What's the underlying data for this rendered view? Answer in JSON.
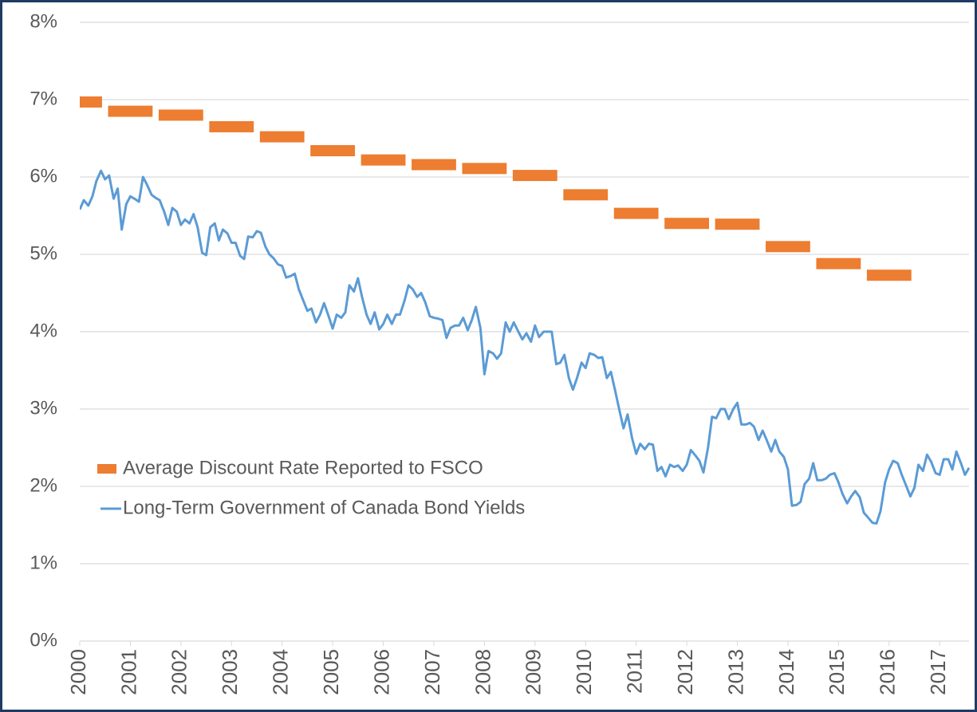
{
  "chart_data": {
    "type": "line",
    "legend": "left",
    "grid": true,
    "xlim": [
      2000,
      2017.58
    ],
    "xticks": [
      2000,
      2001,
      2002,
      2003,
      2004,
      2005,
      2006,
      2007,
      2008,
      2009,
      2010,
      2011,
      2012,
      2013,
      2014,
      2015,
      2016,
      2017
    ],
    "ylim": [
      0,
      8
    ],
    "yticks": [
      {
        "value": 0,
        "label": "0%"
      },
      {
        "value": 1,
        "label": "1%"
      },
      {
        "value": 2,
        "label": "2%"
      },
      {
        "value": 3,
        "label": "3%"
      },
      {
        "value": 4,
        "label": "4%"
      },
      {
        "value": 5,
        "label": "5%"
      },
      {
        "value": 6,
        "label": "6%"
      },
      {
        "value": 7,
        "label": "7%"
      },
      {
        "value": 8,
        "label": "8%"
      }
    ],
    "series": [
      {
        "name": "Average Discount Rate Reported to FSCO",
        "type": "dash",
        "color": "#ed7d31",
        "x": [
          2000,
          2001,
          2002,
          2003,
          2004,
          2005,
          2006,
          2007,
          2008,
          2009,
          2010,
          2011,
          2012,
          2013,
          2014,
          2015,
          2016
        ],
        "values": [
          6.97,
          6.85,
          6.8,
          6.65,
          6.52,
          6.34,
          6.22,
          6.16,
          6.11,
          6.02,
          5.77,
          5.53,
          5.4,
          5.39,
          5.1,
          4.88,
          4.73
        ]
      },
      {
        "name": "Long-Term Government of Canada Bond Yields",
        "type": "line",
        "color": "#5b9bd5",
        "x": [
          2000.0,
          2000.08,
          2000.17,
          2000.25,
          2000.33,
          2000.42,
          2000.5,
          2000.58,
          2000.67,
          2000.75,
          2000.83,
          2000.92,
          2001.0,
          2001.08,
          2001.17,
          2001.25,
          2001.33,
          2001.42,
          2001.5,
          2001.58,
          2001.67,
          2001.75,
          2001.83,
          2001.92,
          2002.0,
          2002.08,
          2002.17,
          2002.25,
          2002.33,
          2002.42,
          2002.5,
          2002.58,
          2002.67,
          2002.75,
          2002.83,
          2002.92,
          2003.0,
          2003.08,
          2003.17,
          2003.25,
          2003.33,
          2003.42,
          2003.5,
          2003.58,
          2003.67,
          2003.75,
          2003.83,
          2003.92,
          2004.0,
          2004.08,
          2004.17,
          2004.25,
          2004.33,
          2004.42,
          2004.5,
          2004.58,
          2004.67,
          2004.75,
          2004.83,
          2004.92,
          2005.0,
          2005.08,
          2005.17,
          2005.25,
          2005.33,
          2005.42,
          2005.5,
          2005.58,
          2005.67,
          2005.75,
          2005.83,
          2005.92,
          2006.0,
          2006.08,
          2006.17,
          2006.25,
          2006.33,
          2006.42,
          2006.5,
          2006.58,
          2006.67,
          2006.75,
          2006.83,
          2006.92,
          2007.0,
          2007.08,
          2007.17,
          2007.25,
          2007.33,
          2007.42,
          2007.5,
          2007.58,
          2007.67,
          2007.75,
          2007.83,
          2007.92,
          2008.0,
          2008.08,
          2008.17,
          2008.25,
          2008.33,
          2008.42,
          2008.5,
          2008.58,
          2008.67,
          2008.75,
          2008.83,
          2008.92,
          2009.0,
          2009.08,
          2009.17,
          2009.25,
          2009.33,
          2009.42,
          2009.5,
          2009.58,
          2009.67,
          2009.75,
          2009.83,
          2009.92,
          2010.0,
          2010.08,
          2010.17,
          2010.25,
          2010.33,
          2010.42,
          2010.5,
          2010.58,
          2010.67,
          2010.75,
          2010.83,
          2010.92,
          2011.0,
          2011.08,
          2011.17,
          2011.25,
          2011.33,
          2011.42,
          2011.5,
          2011.58,
          2011.67,
          2011.75,
          2011.83,
          2011.92,
          2012.0,
          2012.08,
          2012.17,
          2012.25,
          2012.33,
          2012.42,
          2012.5,
          2012.58,
          2012.67,
          2012.75,
          2012.83,
          2012.92,
          2013.0,
          2013.08,
          2013.17,
          2013.25,
          2013.33,
          2013.42,
          2013.5,
          2013.58,
          2013.67,
          2013.75,
          2013.83,
          2013.92,
          2014.0,
          2014.08,
          2014.17,
          2014.25,
          2014.33,
          2014.42,
          2014.5,
          2014.58,
          2014.67,
          2014.75,
          2014.83,
          2014.92,
          2015.0,
          2015.08,
          2015.17,
          2015.25,
          2015.33,
          2015.42,
          2015.5,
          2015.58,
          2015.67,
          2015.75,
          2015.83,
          2015.92,
          2016.0,
          2016.08,
          2016.17,
          2016.25,
          2016.33,
          2016.42,
          2016.5,
          2016.58,
          2016.67,
          2016.75,
          2016.83,
          2016.92,
          2017.0,
          2017.08,
          2017.17,
          2017.25,
          2017.33,
          2017.42,
          2017.5,
          2017.58
        ],
        "values": [
          5.58,
          5.7,
          5.63,
          5.75,
          5.95,
          6.08,
          5.97,
          6.02,
          5.72,
          5.85,
          5.32,
          5.65,
          5.75,
          5.72,
          5.68,
          6.0,
          5.9,
          5.77,
          5.73,
          5.7,
          5.55,
          5.38,
          5.6,
          5.55,
          5.38,
          5.45,
          5.4,
          5.52,
          5.35,
          5.02,
          4.99,
          5.35,
          5.4,
          5.18,
          5.32,
          5.27,
          5.15,
          5.15,
          4.98,
          4.94,
          5.23,
          5.22,
          5.3,
          5.28,
          5.1,
          5.0,
          4.95,
          4.87,
          4.85,
          4.7,
          4.72,
          4.75,
          4.55,
          4.4,
          4.27,
          4.3,
          4.12,
          4.22,
          4.37,
          4.2,
          4.04,
          4.22,
          4.18,
          4.25,
          4.6,
          4.52,
          4.69,
          4.45,
          4.22,
          4.1,
          4.25,
          4.03,
          4.1,
          4.22,
          4.1,
          4.22,
          4.22,
          4.4,
          4.6,
          4.55,
          4.45,
          4.5,
          4.38,
          4.2,
          4.18,
          4.17,
          4.15,
          3.92,
          4.05,
          4.08,
          4.08,
          4.18,
          4.02,
          4.15,
          4.32,
          4.05,
          3.45,
          3.75,
          3.72,
          3.65,
          3.72,
          4.12,
          4.0,
          4.12,
          4.0,
          3.9,
          3.98,
          3.87,
          4.08,
          3.93,
          4.0,
          4.0,
          4.0,
          3.58,
          3.6,
          3.7,
          3.4,
          3.25,
          3.4,
          3.6,
          3.53,
          3.72,
          3.7,
          3.66,
          3.67,
          3.4,
          3.48,
          3.25,
          2.98,
          2.75,
          2.93,
          2.62,
          2.42,
          2.55,
          2.48,
          2.55,
          2.54,
          2.2,
          2.25,
          2.13,
          2.28,
          2.25,
          2.27,
          2.2,
          2.28,
          2.47,
          2.4,
          2.33,
          2.18,
          2.5,
          2.9,
          2.88,
          3.0,
          3.0,
          2.87,
          3.0,
          3.08,
          2.8,
          2.8,
          2.82,
          2.77,
          2.6,
          2.72,
          2.6,
          2.45,
          2.6,
          2.45,
          2.38,
          2.22,
          1.75,
          1.76,
          1.8,
          2.03,
          2.1,
          2.3,
          2.08,
          2.08,
          2.1,
          2.15,
          2.17,
          2.05,
          1.9,
          1.78,
          1.87,
          1.94,
          1.86,
          1.66,
          1.6,
          1.53,
          1.52,
          1.68,
          2.05,
          2.22,
          2.33,
          2.3,
          2.15,
          2.02,
          1.87,
          1.98,
          2.28,
          2.2,
          2.41,
          2.32,
          2.17,
          2.15,
          2.35,
          2.35,
          2.22,
          2.45,
          2.3,
          2.15,
          2.24
        ]
      }
    ]
  }
}
